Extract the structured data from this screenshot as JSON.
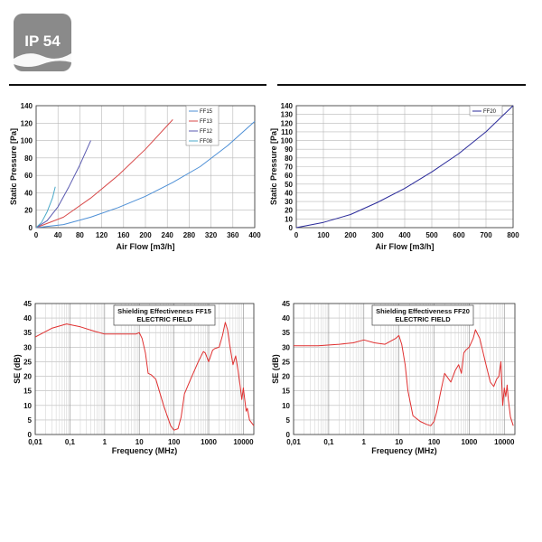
{
  "badge": {
    "label": "IP 54",
    "color": "#8a8a8a"
  },
  "chart_data": [
    {
      "type": "line",
      "xlabel": "Air Flow [m3/h]",
      "ylabel": "Static Pressure [Pa]",
      "xlim": [
        0,
        400
      ],
      "ylim": [
        0,
        140
      ],
      "xticks": [
        "0",
        "40",
        "80",
        "120",
        "160",
        "200",
        "240",
        "280",
        "320",
        "360",
        "400"
      ],
      "yticks": [
        "0",
        "20",
        "40",
        "60",
        "80",
        "100",
        "120",
        "140"
      ],
      "grid": true,
      "legend_position": "top-right",
      "series": [
        {
          "name": "FF15",
          "color": "#4d8fd6",
          "x": [
            0,
            50,
            100,
            150,
            200,
            250,
            300,
            350,
            400
          ],
          "y": [
            0,
            3.5,
            12,
            23,
            36,
            52,
            70,
            94,
            122
          ]
        },
        {
          "name": "FF13",
          "color": "#d84a4a",
          "x": [
            0,
            50,
            100,
            150,
            200,
            250
          ],
          "y": [
            0,
            12,
            34,
            60,
            90,
            124
          ]
        },
        {
          "name": "FF12",
          "color": "#5a5ab0",
          "x": [
            0,
            20,
            40,
            60,
            80,
            100
          ],
          "y": [
            0,
            8,
            24,
            47,
            72,
            100
          ]
        },
        {
          "name": "FF08",
          "color": "#4aa8c8",
          "x": [
            0,
            10,
            20,
            30,
            35
          ],
          "y": [
            0,
            6,
            18,
            34,
            47
          ]
        }
      ]
    },
    {
      "type": "line",
      "xlabel": "Air Flow [m3/h]",
      "ylabel": "Static Pressure [Pa]",
      "xlim": [
        0,
        800
      ],
      "ylim": [
        0,
        140
      ],
      "xticks": [
        "0",
        "100",
        "200",
        "300",
        "400",
        "500",
        "600",
        "700",
        "800"
      ],
      "yticks": [
        "0",
        "10",
        "20",
        "30",
        "40",
        "50",
        "60",
        "70",
        "80",
        "90",
        "100",
        "110",
        "120",
        "130",
        "140"
      ],
      "grid": true,
      "legend_position": "top-right",
      "series": [
        {
          "name": "FF20",
          "color": "#2a2a9a",
          "x": [
            0,
            100,
            200,
            300,
            400,
            500,
            600,
            700,
            800
          ],
          "y": [
            0,
            6,
            15,
            29,
            45,
            64,
            85,
            110,
            140
          ]
        }
      ]
    },
    {
      "type": "line",
      "title": "Shielding Effectiveness FF15",
      "subtitle": "ELECTRIC FIELD",
      "xlabel": "Frequency (MHz)",
      "ylabel": "SE (dB)",
      "xscale": "log",
      "xlim": [
        0.01,
        20000
      ],
      "ylim": [
        0,
        45
      ],
      "xticks": [
        "0,01",
        "0,1",
        "1",
        "10",
        "100",
        "1000",
        "10000"
      ],
      "yticks": [
        "0",
        "5",
        "10",
        "15",
        "20",
        "25",
        "30",
        "35",
        "40",
        "45"
      ],
      "grid": true,
      "series": [
        {
          "color": "#e03030",
          "x": [
            0.01,
            0.03,
            0.08,
            0.2,
            0.5,
            1,
            3,
            8,
            10,
            12,
            15,
            18,
            22,
            30,
            50,
            80,
            100,
            130,
            160,
            200,
            300,
            500,
            700,
            800,
            1000,
            1300,
            1500,
            2000,
            2500,
            3000,
            3500,
            4000,
            5000,
            6000,
            7000,
            8000,
            9000,
            10000,
            12000,
            13000,
            15000,
            20000
          ],
          "y": [
            33.5,
            36.5,
            38,
            37,
            35.5,
            34.5,
            34.5,
            34.5,
            35,
            33,
            28,
            21,
            20.5,
            19,
            10,
            3,
            1.5,
            2,
            6,
            14,
            19,
            25,
            28.5,
            28,
            25,
            29,
            29.5,
            30,
            34,
            38.5,
            36,
            31,
            24,
            27,
            22,
            17,
            12,
            16,
            8,
            9,
            5,
            3
          ]
        }
      ]
    },
    {
      "type": "line",
      "title": "Shielding Effectiveness FF20",
      "subtitle": "ELECTRIC FIELD",
      "xlabel": "Frequency (MHz)",
      "ylabel": "SE (dB)",
      "xscale": "log",
      "xlim": [
        0.01,
        20000
      ],
      "ylim": [
        0,
        45
      ],
      "xticks": [
        "0,01",
        "0,1",
        "1",
        "10",
        "100",
        "1000",
        "10000"
      ],
      "yticks": [
        "0",
        "5",
        "10",
        "15",
        "20",
        "25",
        "30",
        "35",
        "40",
        "45"
      ],
      "grid": true,
      "series": [
        {
          "color": "#e03030",
          "x": [
            0.01,
            0.05,
            0.2,
            0.5,
            1,
            2,
            4,
            8,
            10,
            12,
            15,
            18,
            25,
            40,
            60,
            80,
            100,
            120,
            150,
            200,
            300,
            400,
            500,
            600,
            700,
            800,
            1000,
            1300,
            1500,
            2000,
            3000,
            4000,
            5000,
            6000,
            7000,
            8000,
            9000,
            10000,
            11000,
            12000,
            13000,
            15000,
            18000
          ],
          "y": [
            30.5,
            30.5,
            31,
            31.5,
            32.5,
            31.5,
            31,
            33,
            34,
            31,
            24,
            15,
            6.5,
            4.5,
            3.5,
            3,
            4.5,
            8,
            14,
            21,
            18,
            22,
            24,
            21,
            28,
            29,
            30,
            33,
            36,
            33,
            24,
            18,
            16.5,
            19,
            20,
            25,
            10,
            16,
            13,
            17,
            12,
            6,
            3
          ]
        }
      ]
    }
  ]
}
